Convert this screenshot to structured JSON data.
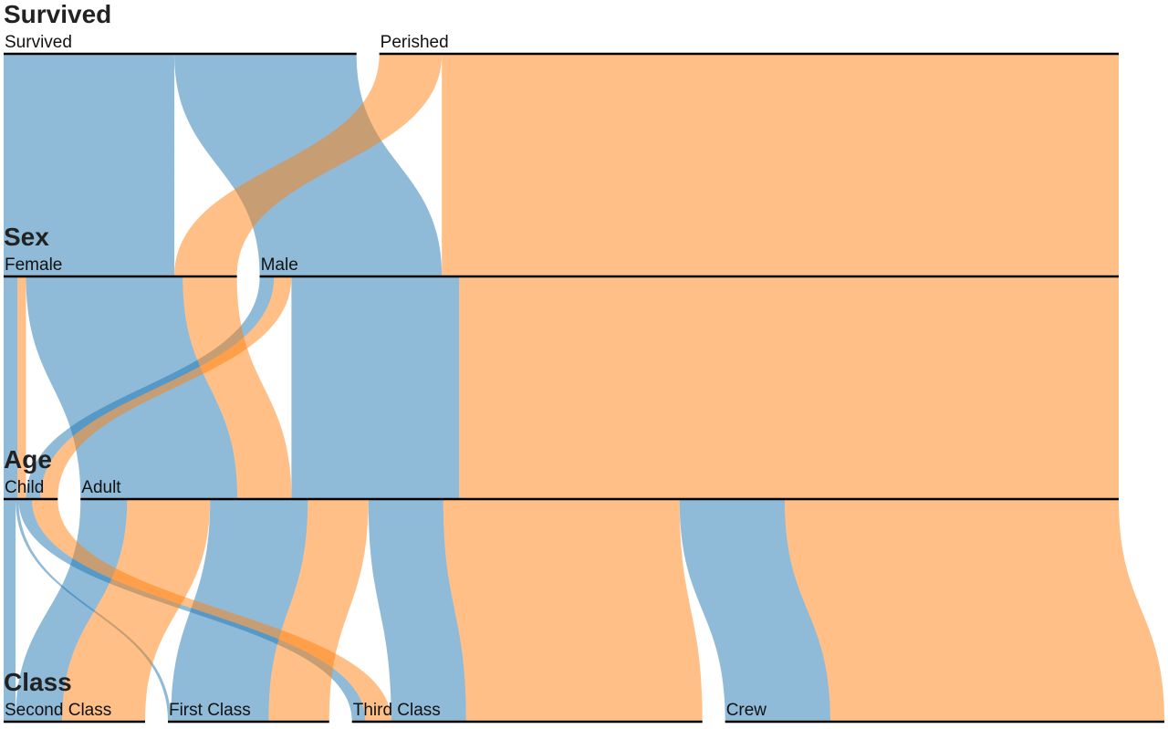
{
  "chart_data": {
    "type": "parallel-sets",
    "dimensions": [
      {
        "name": "Survived",
        "categories": [
          "Survived",
          "Perished"
        ]
      },
      {
        "name": "Sex",
        "categories": [
          "Female",
          "Male"
        ]
      },
      {
        "name": "Age",
        "categories": [
          "Child",
          "Adult"
        ]
      },
      {
        "name": "Class",
        "categories": [
          "Second Class",
          "First Class",
          "Third Class",
          "Crew"
        ]
      }
    ],
    "colors": {
      "Survived": "#1f77b4",
      "Perished": "#ff7f0e"
    },
    "ribbon_opacity": 0.5,
    "records": [
      {
        "Survived": "Survived",
        "Sex": "Female",
        "Age": "Child",
        "Class": "Second Class",
        "count": 13
      },
      {
        "Survived": "Survived",
        "Sex": "Female",
        "Age": "Child",
        "Class": "First Class",
        "count": 1
      },
      {
        "Survived": "Survived",
        "Sex": "Female",
        "Age": "Child",
        "Class": "Third Class",
        "count": 14
      },
      {
        "Survived": "Survived",
        "Sex": "Female",
        "Age": "Adult",
        "Class": "Second Class",
        "count": 80
      },
      {
        "Survived": "Survived",
        "Sex": "Female",
        "Age": "Adult",
        "Class": "First Class",
        "count": 140
      },
      {
        "Survived": "Survived",
        "Sex": "Female",
        "Age": "Adult",
        "Class": "Third Class",
        "count": 76
      },
      {
        "Survived": "Survived",
        "Sex": "Female",
        "Age": "Adult",
        "Class": "Crew",
        "count": 20
      },
      {
        "Survived": "Survived",
        "Sex": "Male",
        "Age": "Child",
        "Class": "Second Class",
        "count": 11
      },
      {
        "Survived": "Survived",
        "Sex": "Male",
        "Age": "Child",
        "Class": "First Class",
        "count": 5
      },
      {
        "Survived": "Survived",
        "Sex": "Male",
        "Age": "Child",
        "Class": "Third Class",
        "count": 13
      },
      {
        "Survived": "Survived",
        "Sex": "Male",
        "Age": "Adult",
        "Class": "Second Class",
        "count": 14
      },
      {
        "Survived": "Survived",
        "Sex": "Male",
        "Age": "Adult",
        "Class": "First Class",
        "count": 57
      },
      {
        "Survived": "Survived",
        "Sex": "Male",
        "Age": "Adult",
        "Class": "Third Class",
        "count": 75
      },
      {
        "Survived": "Survived",
        "Sex": "Male",
        "Age": "Adult",
        "Class": "Crew",
        "count": 192
      },
      {
        "Survived": "Perished",
        "Sex": "Female",
        "Age": "Child",
        "Class": "Third Class",
        "count": 17
      },
      {
        "Survived": "Perished",
        "Sex": "Female",
        "Age": "Adult",
        "Class": "Second Class",
        "count": 13
      },
      {
        "Survived": "Perished",
        "Sex": "Female",
        "Age": "Adult",
        "Class": "First Class",
        "count": 4
      },
      {
        "Survived": "Perished",
        "Sex": "Female",
        "Age": "Adult",
        "Class": "Third Class",
        "count": 89
      },
      {
        "Survived": "Perished",
        "Sex": "Female",
        "Age": "Adult",
        "Class": "Crew",
        "count": 3
      },
      {
        "Survived": "Perished",
        "Sex": "Male",
        "Age": "Child",
        "Class": "Third Class",
        "count": 35
      },
      {
        "Survived": "Perished",
        "Sex": "Male",
        "Age": "Adult",
        "Class": "Second Class",
        "count": 154
      },
      {
        "Survived": "Perished",
        "Sex": "Male",
        "Age": "Adult",
        "Class": "First Class",
        "count": 118
      },
      {
        "Survived": "Perished",
        "Sex": "Male",
        "Age": "Adult",
        "Class": "Third Class",
        "count": 387
      },
      {
        "Survived": "Perished",
        "Sex": "Male",
        "Age": "Adult",
        "Class": "Crew",
        "count": 670
      }
    ]
  }
}
